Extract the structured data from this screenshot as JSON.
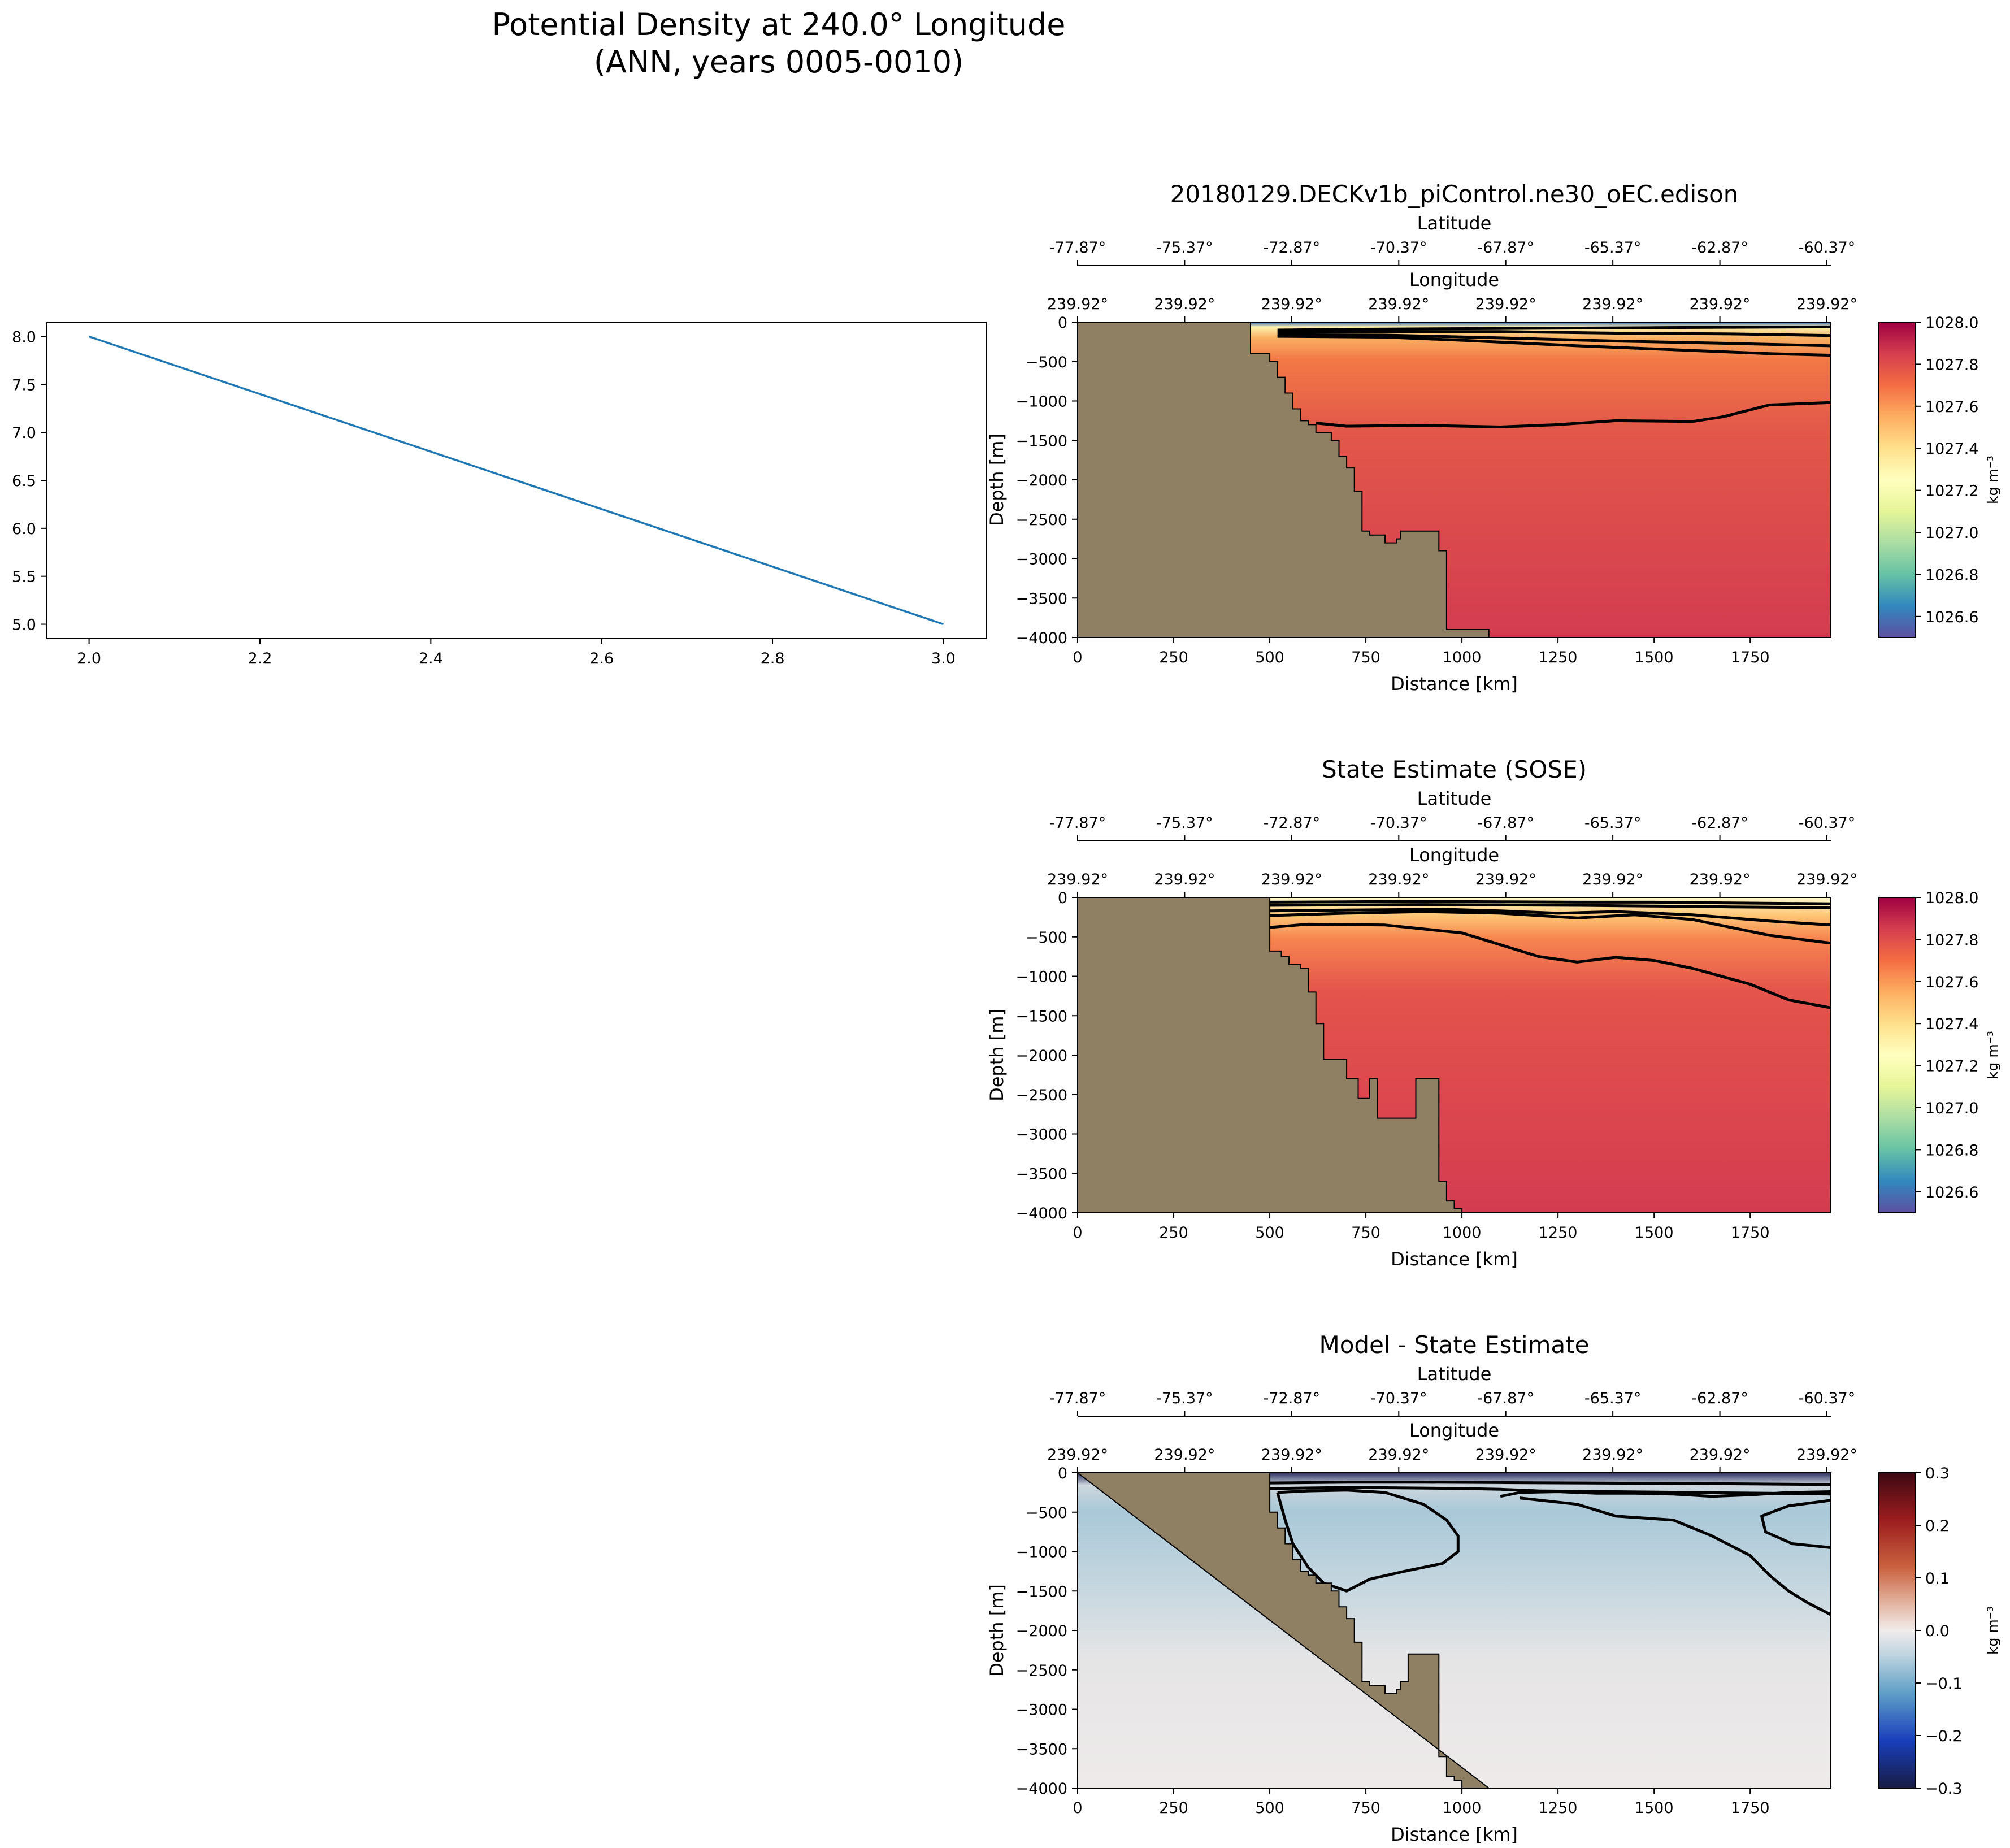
{
  "suptitle": [
    "Potential Density at 240.0° Longitude",
    "(ANN, years 0005-0010)"
  ],
  "colors": {
    "land": "#8f8064",
    "line": "#1f77b4",
    "contour": "#000000"
  },
  "chart_data": [
    {
      "type": "line",
      "name": "placeholder-line",
      "x": [
        2.0,
        3.0
      ],
      "y": [
        8.0,
        5.0
      ],
      "xlim": [
        1.95,
        3.05
      ],
      "ylim": [
        4.85,
        8.15
      ],
      "xticks": [
        "2.0",
        "2.2",
        "2.4",
        "2.6",
        "2.8",
        "3.0"
      ],
      "yticks": [
        "5.0",
        "5.5",
        "6.0",
        "6.5",
        "7.0",
        "7.5",
        "8.0"
      ]
    },
    {
      "type": "heatmap",
      "name": "model",
      "title": "20180129.DECKv1b_piControl.ne30_oEC.edison",
      "xlabel": "Distance [km]",
      "ylabel": "Depth [m]",
      "xlim": [
        0,
        1960
      ],
      "ylim": [
        -4000,
        0
      ],
      "xticks": [
        "0",
        "250",
        "500",
        "750",
        "1000",
        "1250",
        "1500",
        "1750"
      ],
      "yticks": [
        "0",
        "−500",
        "−1000",
        "−1500",
        "−2000",
        "−2500",
        "−3000",
        "−3500",
        "−4000"
      ],
      "lat_label": "Latitude",
      "lat_ticks": [
        "-77.87°",
        "-75.37°",
        "-72.87°",
        "-70.37°",
        "-67.87°",
        "-65.37°",
        "-62.87°",
        "-60.37°"
      ],
      "lon_label": "Longitude",
      "lon_ticks": [
        "239.92°",
        "239.92°",
        "239.92°",
        "239.92°",
        "239.92°",
        "239.92°",
        "239.92°",
        "239.92°"
      ],
      "colorbar": {
        "label": "kg m⁻³",
        "range": [
          1026.5,
          1028.0
        ],
        "ticks": [
          "1026.6",
          "1026.8",
          "1027.0",
          "1027.2",
          "1027.4",
          "1027.6",
          "1027.8",
          "1028.0"
        ]
      },
      "land_x": [
        0,
        450,
        450,
        500,
        500,
        520,
        520,
        540,
        540,
        560,
        560,
        580,
        580,
        600,
        600,
        620,
        620,
        660,
        660,
        680,
        680,
        700,
        700,
        720,
        720,
        740,
        740,
        760,
        760,
        800,
        800,
        830,
        830,
        840,
        840,
        860,
        860,
        940,
        940,
        960,
        960,
        1070,
        1070,
        0
      ],
      "land_y": [
        0,
        0,
        -400,
        -400,
        -500,
        -500,
        -700,
        -700,
        -900,
        -900,
        -1100,
        -1100,
        -1250,
        -1250,
        -1300,
        -1300,
        -1400,
        -1400,
        -1500,
        -1500,
        -1700,
        -1700,
        -1850,
        -1850,
        -2150,
        -2150,
        -2650,
        -2650,
        -2700,
        -2700,
        -2800,
        -2800,
        -2750,
        -2750,
        -2650,
        -2650,
        -2650,
        -2650,
        -2900,
        -2900,
        -3900,
        -3900,
        -4000,
        -4000
      ],
      "contours": [
        {
          "x": [
            520,
            700,
            900,
            1100,
            1300,
            1500,
            1700,
            1960
          ],
          "y": [
            -100,
            -90,
            -85,
            -80,
            -75,
            -70,
            -65,
            -60
          ]
        },
        {
          "x": [
            520,
            800,
            1100,
            1400,
            1700,
            1960
          ],
          "y": [
            -130,
            -120,
            -120,
            -140,
            -150,
            -170
          ]
        },
        {
          "x": [
            520,
            800,
            1100,
            1400,
            1700,
            1960
          ],
          "y": [
            -160,
            -165,
            -200,
            -240,
            -270,
            -300
          ]
        },
        {
          "x": [
            520,
            800,
            1000,
            1300,
            1600,
            1800,
            1960
          ],
          "y": [
            -180,
            -190,
            -230,
            -300,
            -360,
            -400,
            -420
          ]
        },
        {
          "x": [
            620,
            700,
            900,
            1100,
            1250,
            1400,
            1600,
            1680,
            1800,
            1960
          ],
          "y": [
            -1280,
            -1320,
            -1310,
            -1330,
            -1300,
            -1250,
            -1260,
            -1200,
            -1050,
            -1020
          ]
        }
      ]
    },
    {
      "type": "heatmap",
      "name": "sose",
      "title": "State Estimate (SOSE)",
      "xlabel": "Distance [km]",
      "ylabel": "Depth [m]",
      "xlim": [
        0,
        1960
      ],
      "ylim": [
        -4000,
        0
      ],
      "xticks": [
        "0",
        "250",
        "500",
        "750",
        "1000",
        "1250",
        "1500",
        "1750"
      ],
      "yticks": [
        "0",
        "−500",
        "−1000",
        "−1500",
        "−2000",
        "−2500",
        "−3000",
        "−3500",
        "−4000"
      ],
      "lat_label": "Latitude",
      "lat_ticks": [
        "-77.87°",
        "-75.37°",
        "-72.87°",
        "-70.37°",
        "-67.87°",
        "-65.37°",
        "-62.87°",
        "-60.37°"
      ],
      "lon_label": "Longitude",
      "lon_ticks": [
        "239.92°",
        "239.92°",
        "239.92°",
        "239.92°",
        "239.92°",
        "239.92°",
        "239.92°",
        "239.92°"
      ],
      "colorbar": {
        "label": "kg m⁻³",
        "range": [
          1026.5,
          1028.0
        ],
        "ticks": [
          "1026.6",
          "1026.8",
          "1027.0",
          "1027.2",
          "1027.4",
          "1027.6",
          "1027.8",
          "1028.0"
        ]
      },
      "land_x": [
        0,
        500,
        500,
        530,
        530,
        550,
        550,
        580,
        580,
        600,
        600,
        620,
        620,
        640,
        640,
        700,
        700,
        730,
        730,
        760,
        760,
        780,
        780,
        880,
        880,
        940,
        940,
        960,
        960,
        980,
        980,
        1000,
        1000,
        0
      ],
      "land_y": [
        0,
        0,
        -680,
        -680,
        -750,
        -750,
        -850,
        -850,
        -900,
        -900,
        -1200,
        -1200,
        -1600,
        -1600,
        -2050,
        -2050,
        -2300,
        -2300,
        -2550,
        -2550,
        -2300,
        -2300,
        -2800,
        -2800,
        -2300,
        -2300,
        -3600,
        -3600,
        -3850,
        -3850,
        -3950,
        -3950,
        -4000,
        -4000
      ],
      "contours": [
        {
          "x": [
            500,
            700,
            900,
            1100,
            1300,
            1500,
            1700,
            1960
          ],
          "y": [
            -60,
            -55,
            -50,
            -55,
            -60,
            -60,
            -70,
            -80
          ]
        },
        {
          "x": [
            500,
            700,
            900,
            1100,
            1300,
            1500,
            1700,
            1960
          ],
          "y": [
            -100,
            -95,
            -90,
            -95,
            -100,
            -110,
            -120,
            -130
          ]
        },
        {
          "x": [
            500,
            700,
            950,
            1100,
            1250,
            1400,
            1600,
            1800,
            1960
          ],
          "y": [
            -170,
            -160,
            -150,
            -170,
            -200,
            -180,
            -220,
            -300,
            -350
          ]
        },
        {
          "x": [
            500,
            700,
            900,
            1100,
            1300,
            1450,
            1600,
            1800,
            1960
          ],
          "y": [
            -230,
            -200,
            -180,
            -200,
            -260,
            -220,
            -280,
            -480,
            -580
          ]
        },
        {
          "x": [
            500,
            600,
            800,
            1000,
            1100,
            1200,
            1300,
            1400,
            1500,
            1600,
            1750,
            1850,
            1960
          ],
          "y": [
            -380,
            -340,
            -350,
            -450,
            -600,
            -750,
            -820,
            -760,
            -800,
            -900,
            -1100,
            -1300,
            -1400
          ]
        }
      ]
    },
    {
      "type": "heatmap",
      "name": "difference",
      "title": "Model - State Estimate",
      "xlabel": "Distance [km]",
      "ylabel": "Depth [m]",
      "xlim": [
        0,
        1960
      ],
      "ylim": [
        -4000,
        0
      ],
      "xticks": [
        "0",
        "250",
        "500",
        "750",
        "1000",
        "1250",
        "1500",
        "1750"
      ],
      "yticks": [
        "0",
        "−500",
        "−1000",
        "−1500",
        "−2000",
        "−2500",
        "−3000",
        "−3500",
        "−4000"
      ],
      "lat_label": "Latitude",
      "lat_ticks": [
        "-77.87°",
        "-75.37°",
        "-72.87°",
        "-70.37°",
        "-67.87°",
        "-65.37°",
        "-62.87°",
        "-60.37°"
      ],
      "lon_label": "Longitude",
      "lon_ticks": [
        "239.92°",
        "239.92°",
        "239.92°",
        "239.92°",
        "239.92°",
        "239.92°",
        "239.92°",
        "239.92°"
      ],
      "colorbar": {
        "label": "kg m⁻³",
        "range": [
          -0.3,
          0.3
        ],
        "ticks": [
          "−0.3",
          "−0.2",
          "−0.1",
          "0.0",
          "0.1",
          "0.2",
          "0.3"
        ]
      },
      "land_x": [
        0,
        500,
        500,
        520,
        520,
        540,
        540,
        560,
        560,
        580,
        580,
        600,
        600,
        620,
        620,
        660,
        660,
        680,
        680,
        700,
        700,
        720,
        720,
        740,
        740,
        760,
        760,
        800,
        800,
        830,
        830,
        840,
        840,
        860,
        860,
        890,
        890,
        940,
        940,
        960,
        960,
        980,
        980,
        1000,
        1000,
        1070,
        1070,
        0
      ],
      "land_y": [
        0,
        0,
        -500,
        -500,
        -700,
        -700,
        -900,
        -900,
        -1100,
        -1100,
        -1250,
        -1250,
        -1300,
        -1300,
        -1400,
        -1400,
        -1500,
        -1500,
        -1700,
        -1700,
        -1850,
        -1850,
        -2150,
        -2150,
        -2650,
        -2650,
        -2700,
        -2700,
        -2800,
        -2800,
        -2750,
        -2750,
        -2650,
        -2650,
        -2300,
        -2300,
        -2300,
        -2300,
        -3600,
        -3600,
        -3850,
        -3850,
        -3900,
        -3900,
        -4000,
        -4000
      ],
      "contours": [
        {
          "x": [
            500,
            700,
            900,
            1100,
            1300,
            1500,
            1700,
            1960
          ],
          "y": [
            -130,
            -120,
            -120,
            -125,
            -130,
            -135,
            -140,
            -150
          ]
        },
        {
          "x": [
            500,
            650,
            800,
            1000,
            1100,
            1200,
            1400,
            1600,
            1800,
            1960
          ],
          "y": [
            -200,
            -190,
            -190,
            -200,
            -210,
            -230,
            -240,
            -250,
            -260,
            -270
          ]
        },
        {
          "x": [
            520,
            600,
            700,
            800,
            900,
            960,
            990,
            990,
            950,
            850,
            760,
            700,
            640,
            600,
            560,
            540,
            520
          ],
          "y": [
            -250,
            -230,
            -220,
            -250,
            -400,
            -600,
            -800,
            -1000,
            -1150,
            -1250,
            -1350,
            -1500,
            -1400,
            -1200,
            -900,
            -600,
            -250
          ]
        },
        {
          "x": [
            1100,
            1150,
            1250,
            1350,
            1450,
            1550,
            1650,
            1750,
            1850,
            1960
          ],
          "y": [
            -300,
            -250,
            -240,
            -260,
            -260,
            -270,
            -300,
            -280,
            -250,
            -240
          ]
        },
        {
          "x": [
            1150,
            1300,
            1400,
            1550,
            1650,
            1750,
            1800,
            1850,
            1900,
            1960
          ],
          "y": [
            -320,
            -400,
            -550,
            -600,
            -800,
            -1050,
            -1300,
            -1500,
            -1650,
            -1800
          ]
        },
        {
          "x": [
            1960,
            1850,
            1780,
            1790,
            1860,
            1960
          ],
          "y": [
            -350,
            -420,
            -550,
            -750,
            -900,
            -950
          ]
        }
      ]
    }
  ]
}
